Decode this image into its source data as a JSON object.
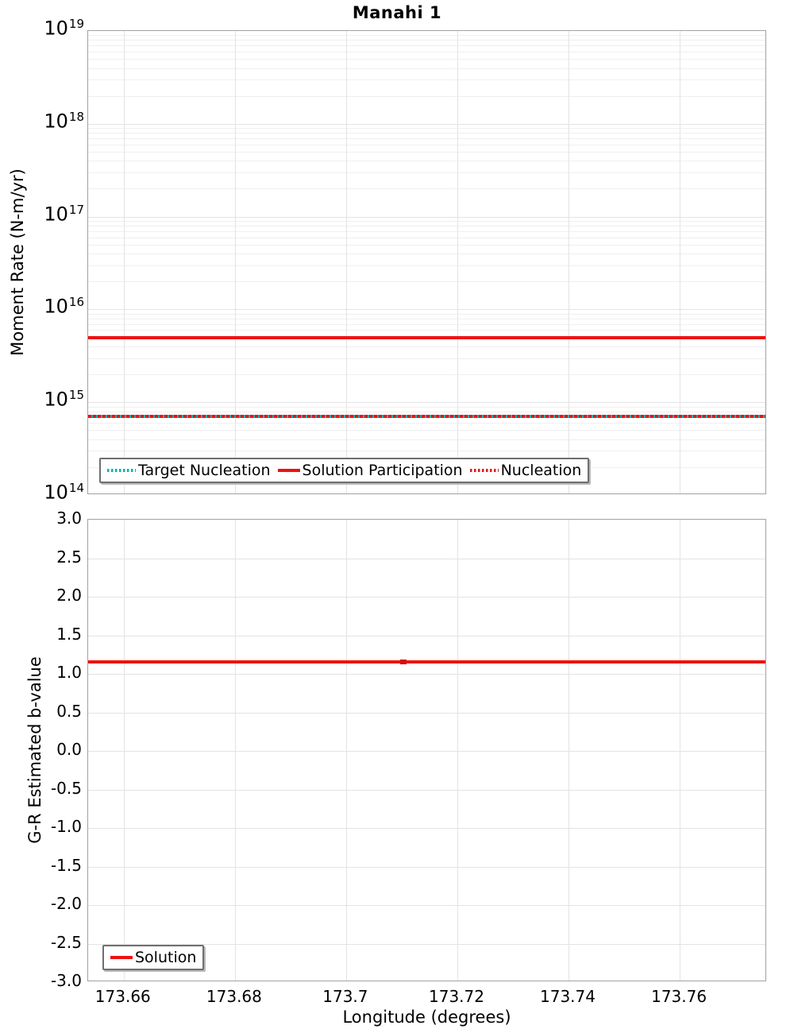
{
  "title": "Manahi 1",
  "xlabel": "Longitude (degrees)",
  "xticks": [
    "173.66",
    "173.68",
    "173.7",
    "173.72",
    "173.74",
    "173.76"
  ],
  "xtick_values": [
    173.66,
    173.68,
    173.7,
    173.72,
    173.74,
    173.76
  ],
  "colors": {
    "red": "#ee1111",
    "red_marker": "#d40d0d",
    "teal": "#00b4b4",
    "grid_minor": "#efefef",
    "grid_major": "#e3e3e3",
    "axis_border": "#a2a2a2",
    "text": "#000000"
  },
  "top_chart": {
    "ylabel": "Moment Rate (N-m/yr)",
    "ytick_exponents": [
      19,
      18,
      17,
      16,
      15,
      14
    ],
    "ytick_labels": [
      "10^19",
      "10^18",
      "10^17",
      "10^16",
      "10^15",
      "10^14"
    ],
    "legend": [
      {
        "label": "Target Nucleation",
        "line": "dotted",
        "color": "#00b4b4"
      },
      {
        "label": "Solution Participation",
        "line": "solid",
        "color": "#ee1111"
      },
      {
        "label": "Nucleation",
        "line": "dotted",
        "color": "#ee1111"
      }
    ]
  },
  "bottom_chart": {
    "ylabel": "G-R Estimated b-value",
    "yticks": [
      "3.0",
      "2.5",
      "2.0",
      "1.5",
      "1.0",
      "0.5",
      "0.0",
      "-0.5",
      "-1.0",
      "-1.5",
      "-2.0",
      "-2.5",
      "-3.0"
    ],
    "legend": [
      {
        "label": "Solution",
        "line": "solid",
        "color": "#ee1111"
      }
    ]
  },
  "chart_data": [
    {
      "type": "line",
      "title": "Manahi 1",
      "xlabel": "Longitude (degrees)",
      "ylabel": "Moment Rate (N-m/yr)",
      "y_scale": "log",
      "ylim": [
        100000000000000.0,
        1e+19
      ],
      "x_range": [
        173.6536,
        173.7757
      ],
      "grid": true,
      "legend_position": "lower left",
      "series": [
        {
          "name": "Target Nucleation",
          "style": "dotted",
          "color": "#00b4b4",
          "x": [
            173.6536,
            173.7757
          ],
          "y": [
            700000000000000.0,
            700000000000000.0
          ]
        },
        {
          "name": "Solution Participation",
          "style": "solid",
          "color": "#ee1111",
          "x": [
            173.6536,
            173.7757
          ],
          "y": [
            5000000000000000.0,
            5000000000000000.0
          ]
        },
        {
          "name": "Nucleation",
          "style": "dotted",
          "color": "#ee1111",
          "x": [
            173.6536,
            173.7757
          ],
          "y": [
            700000000000000.0,
            700000000000000.0
          ]
        }
      ]
    },
    {
      "type": "line",
      "xlabel": "Longitude (degrees)",
      "ylabel": "G-R Estimated b-value",
      "ylim": [
        -3.0,
        3.0
      ],
      "x_range": [
        173.6536,
        173.7757
      ],
      "grid": true,
      "legend_position": "lower left",
      "series": [
        {
          "name": "Solution",
          "style": "solid",
          "color": "#ee1111",
          "x": [
            173.6536,
            173.7757
          ],
          "y": [
            1.16,
            1.16
          ],
          "point_x": 173.7103
        }
      ]
    }
  ]
}
